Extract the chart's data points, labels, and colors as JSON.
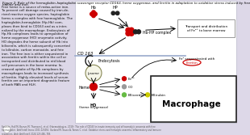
{
  "bg_color": "#ddd8e8",
  "diagram_bg": "#ffffff",
  "red_color": "#cc0000",
  "dark_color": "#111111",
  "title_line1": "Figure 2: Role of the hemoglobin–haptoglobin scavenger receptor CD163, heme oxygenase, and ferritin in adaptation to oxidative stress induced by free",
  "title_line2": "haeme and iron.",
  "body_text": "Free heme is a source of redox-active iron.\nTo prevent cell damage caused by iron-de-\nrived reactive oxygen species, haptoglobin\nforms a complex with free haemoglobin. The\nhaptoglobin-hemoglobin (Hp-Hb) com-\nplexes then bind to CD163 and as a inter-\nnalized by the macrophage. Endocytosis of\nHp-Hb complexes leads to upregulation of\nheme oxygenase (HO) enzymatic activity.\nHO degrades the heme subunit of Hb into\nbiliverdin, which is subsequently converted\nto bilirubin, carbon monoxide, and frée\niron. The free iron is either sequestered in\nassociation with ferritin within the cell or\ntransported and distributed to réd blood\ncell precursors in the bone marrów. In-\ncreased uptake of Hp-Hb complexes by\nmacrophages leads to increased synthesis\nof ferritin. Highly elevated levels of serum\nferritin are an important diagnostic feature\nof both MAS and HLH.",
  "sources_text": "Sources: Hall M, Barnes M, Thomson J, et al. (Haematologica, 2019). The role of CD163 in innate immunity and of haemolytic anaemia with free\nhaemoglobin. Artif Intell Innov 2001:123456. Garland M, Saura A, Tomas C, et al. Oxidative stress and hemolytic anaemia: Inflammatory and Immune\nresponses. Arch Artif Intell 2024;123:456–789.",
  "co_dot_color": "#999999",
  "biliverdin_dot_color": "#66bb44",
  "bilirubin_dot_color": "#cccc00",
  "ferritin_circle_color": "#cc0000",
  "lysome_fill": "#f5f5e8",
  "transport_box_border": "#999999",
  "macrophage_border": "#222222",
  "divider_color": "#99aacc"
}
